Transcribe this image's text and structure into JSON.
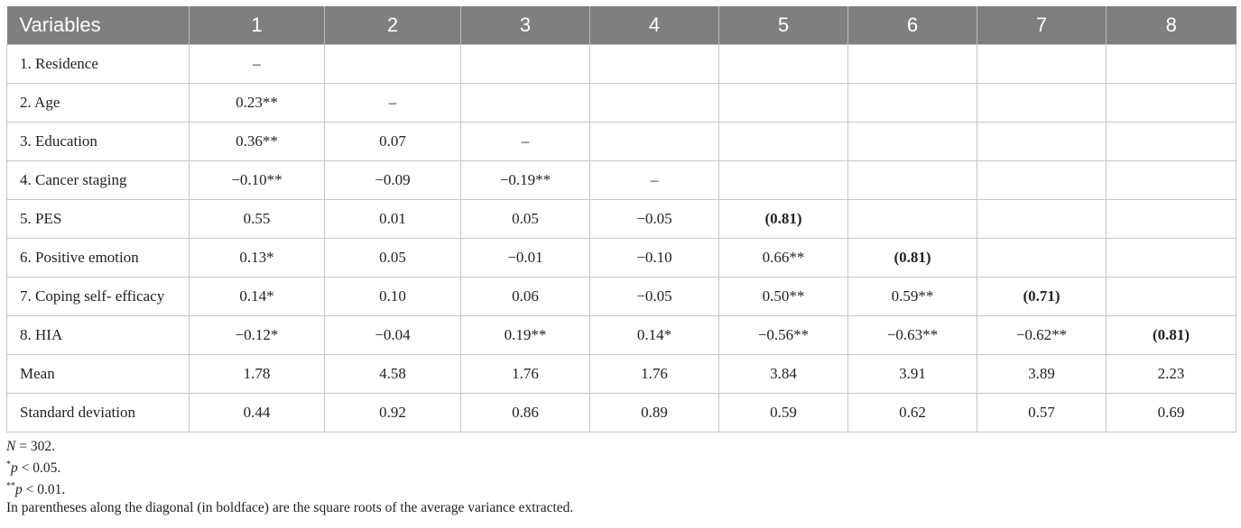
{
  "table": {
    "headers": [
      "Variables",
      "1",
      "2",
      "3",
      "4",
      "5",
      "6",
      "7",
      "8"
    ],
    "rows": [
      [
        "1. Residence",
        "–",
        "",
        "",
        "",
        "",
        "",
        "",
        ""
      ],
      [
        "2. Age",
        "0.23**",
        "–",
        "",
        "",
        "",
        "",
        "",
        ""
      ],
      [
        "3. Education",
        "0.36**",
        "0.07",
        "–",
        "",
        "",
        "",
        "",
        ""
      ],
      [
        "4. Cancer staging",
        "−0.10**",
        "−0.09",
        "−0.19**",
        "–",
        "",
        "",
        "",
        ""
      ],
      [
        "5. PES",
        "0.55",
        "0.01",
        "0.05",
        "−0.05",
        "(0.81)",
        "",
        "",
        ""
      ],
      [
        "6. Positive emotion",
        "0.13*",
        "0.05",
        "−0.01",
        "−0.10",
        "0.66**",
        "(0.81)",
        "",
        ""
      ],
      [
        "7. Coping self- efficacy",
        "0.14*",
        "0.10",
        "0.06",
        "−0.05",
        "0.50**",
        "0.59**",
        "(0.71)",
        ""
      ],
      [
        "8. HIA",
        "−0.12*",
        "−0.04",
        "0.19**",
        "0.14*",
        "−0.56**",
        "−0.63**",
        "−0.62**",
        "(0.81)"
      ],
      [
        "Mean",
        "1.78",
        "4.58",
        "1.76",
        "1.76",
        "3.84",
        "3.91",
        "3.89",
        "2.23"
      ],
      [
        "Standard deviation",
        "0.44",
        "0.92",
        "0.86",
        "0.89",
        "0.59",
        "0.62",
        "0.57",
        "0.69"
      ]
    ],
    "bold_cells": [
      [
        4,
        5
      ],
      [
        5,
        6
      ],
      [
        6,
        7
      ],
      [
        7,
        8
      ]
    ]
  },
  "notes": {
    "n_label": "N",
    "n_value": " = 302.",
    "p1_mark": "*",
    "p1_var": "p",
    "p1_text": " < 0.05.",
    "p2_mark": "**",
    "p2_var": "p",
    "p2_text": " < 0.01.",
    "diag_text": "In parentheses along the diagonal (in boldface) are the square roots of the average variance extracted."
  }
}
